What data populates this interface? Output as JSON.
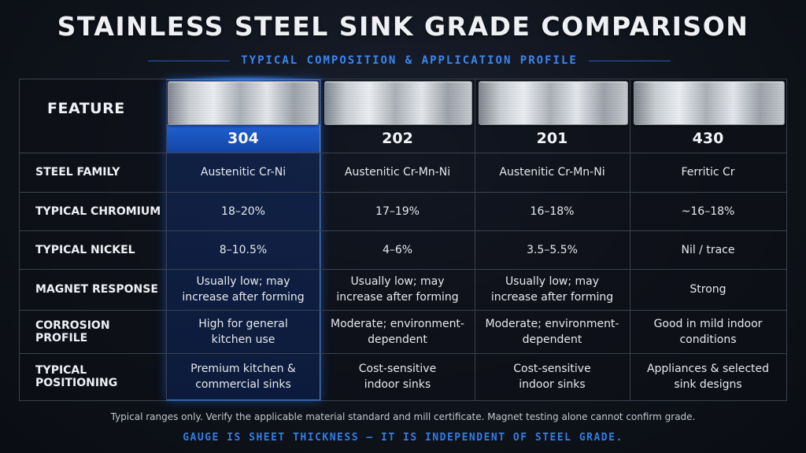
{
  "title": "STAINLESS STEEL SINK GRADE COMPARISON",
  "subtitle": "TYPICAL COMPOSITION & APPLICATION PROFILE",
  "table": {
    "feature_header": "FEATURE",
    "highlight_color": "#1f5fd0",
    "grades": [
      "304",
      "202",
      "201",
      "430"
    ],
    "rows": [
      {
        "label": "STEEL FAMILY",
        "values": [
          "Austenitic Cr-Ni",
          "Austenitic Cr-Mn-Ni",
          "Austenitic Cr-Mn-Ni",
          "Ferritic Cr"
        ]
      },
      {
        "label": "TYPICAL CHROMIUM",
        "values": [
          "18–20%",
          "17–19%",
          "16–18%",
          "~16–18%"
        ]
      },
      {
        "label": "TYPICAL NICKEL",
        "values": [
          "8–10.5%",
          "4–6%",
          "3.5–5.5%",
          "Nil / trace"
        ]
      },
      {
        "label": "MAGNET RESPONSE",
        "values": [
          "Usually low; may\nincrease after forming",
          "Usually low; may\nincrease after forming",
          "Usually low; may\nincrease after forming",
          "Strong"
        ]
      },
      {
        "label": "CORROSION PROFILE",
        "values": [
          "High for general\nkitchen use",
          "Moderate; environment-\ndependent",
          "Moderate; environment-\ndependent",
          "Good in mild indoor\nconditions"
        ]
      },
      {
        "label": "TYPICAL POSITIONING",
        "values": [
          "Premium kitchen &\ncommercial sinks",
          "Cost-sensitive\nindoor sinks",
          "Cost-sensitive\nindoor sinks",
          "Appliances & selected\nsink designs"
        ]
      }
    ]
  },
  "note": "Typical ranges only. Verify the applicable material standard and mill certificate. Magnet testing alone cannot confirm grade.",
  "footer": "GAUGE IS SHEET THICKNESS — IT IS INDEPENDENT OF STEEL GRADE."
}
